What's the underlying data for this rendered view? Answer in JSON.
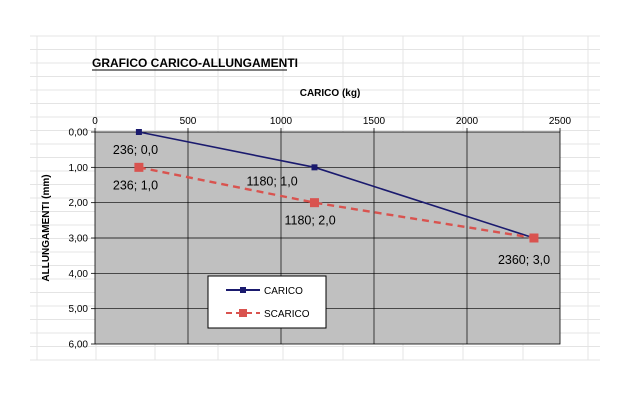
{
  "colors": {
    "background": "#ffffff",
    "sheet_grid": "#e4e4e4",
    "plot_area": "#c0c0c0",
    "carico": "#1a1a6e",
    "scarico": "#d9534f"
  },
  "chart_data": {
    "type": "line",
    "title": "GRAFICO  CARICO-ALLUNGAMENTI",
    "xlabel": "CARICO (kg)",
    "ylabel": "ALLUNGAMENTI  (mm)",
    "x_axis_position": "top",
    "y_axis_inverted": true,
    "xlim": [
      0,
      2500
    ],
    "ylim": [
      0,
      6
    ],
    "x_ticks": [
      "0",
      "500",
      "1000",
      "1500",
      "2000",
      "2500"
    ],
    "y_ticks": [
      "0,00",
      "1,00",
      "2,00",
      "3,00",
      "4,00",
      "5,00",
      "6,00"
    ],
    "grid": true,
    "legend_position": "bottom-left",
    "series": [
      {
        "name": "CARICO",
        "style": "solid",
        "marker": "square",
        "x": [
          236,
          1180,
          2360
        ],
        "y": [
          0.0,
          1.0,
          3.0
        ],
        "labels": [
          "236; 0,0",
          "1180; 1,0",
          "2360; 3,0"
        ]
      },
      {
        "name": "SCARICO",
        "style": "dashed",
        "marker": "square",
        "x": [
          236,
          1180,
          2360
        ],
        "y": [
          1.0,
          2.0,
          3.0
        ],
        "labels": [
          "236; 1,0",
          "1180; 2,0",
          ""
        ]
      }
    ]
  }
}
